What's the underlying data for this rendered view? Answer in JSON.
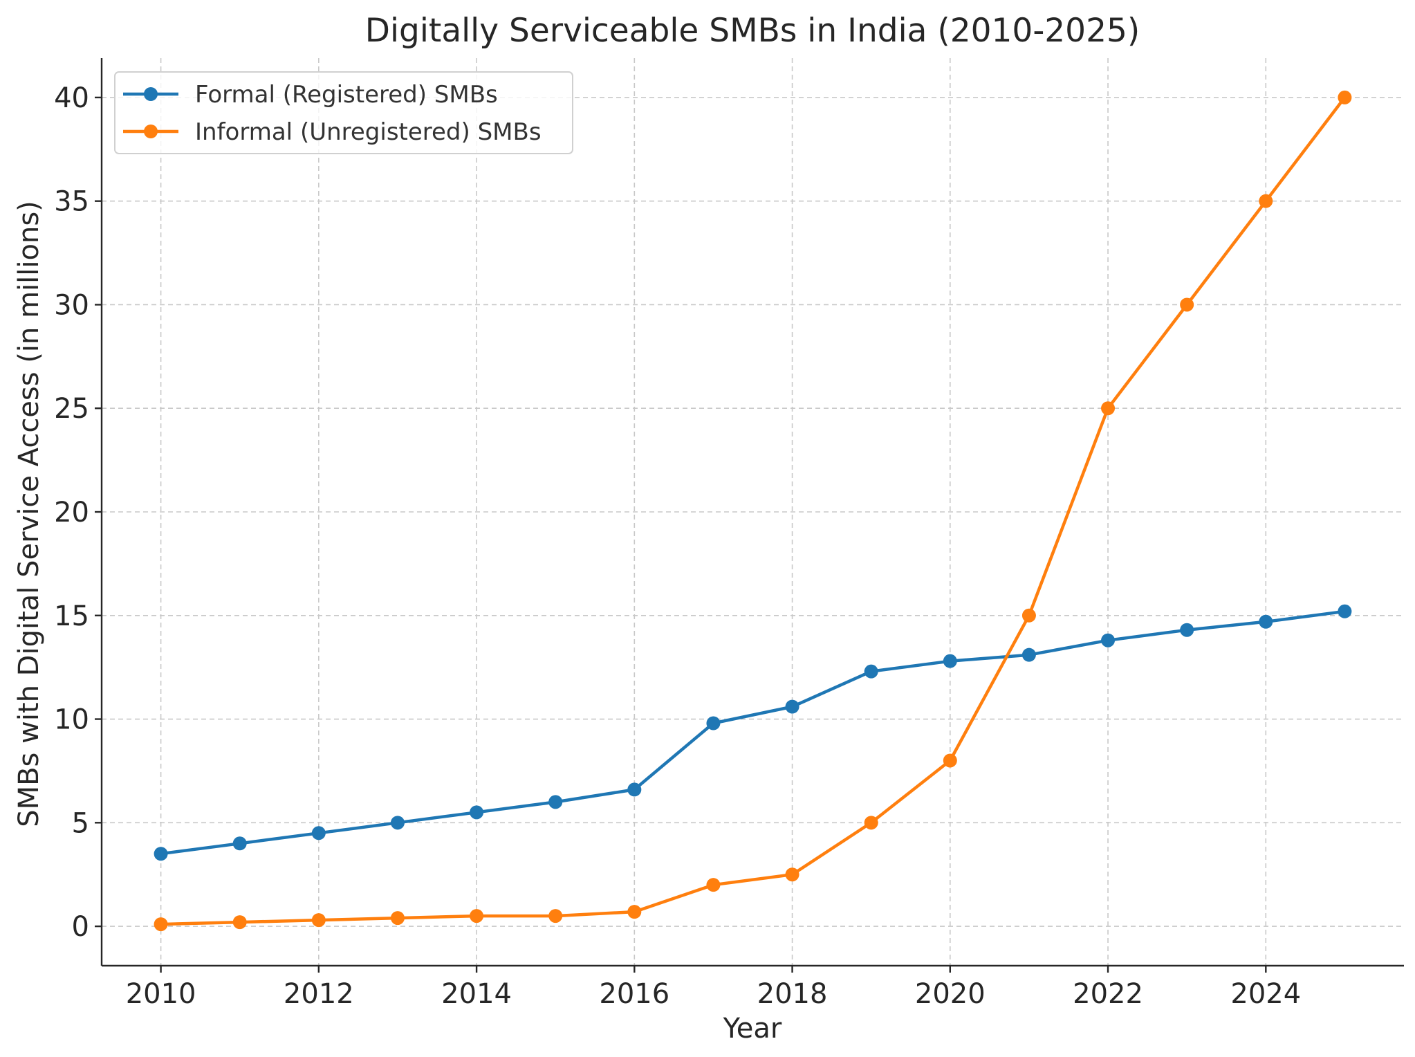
{
  "chart_data": {
    "type": "line",
    "title": "Digitally Serviceable SMBs in India (2010-2025)",
    "xlabel": "Year",
    "ylabel": "SMBs with Digital Service Access (in millions)",
    "x": [
      2010,
      2011,
      2012,
      2013,
      2014,
      2015,
      2016,
      2017,
      2018,
      2019,
      2020,
      2021,
      2022,
      2023,
      2024,
      2025
    ],
    "xlim": [
      2009.25,
      2025.75
    ],
    "ylim": [
      -1.9,
      41.9
    ],
    "xticks": [
      2010,
      2012,
      2014,
      2016,
      2018,
      2020,
      2022,
      2024
    ],
    "yticks": [
      0,
      5,
      10,
      15,
      20,
      25,
      30,
      35,
      40
    ],
    "grid": true,
    "legend_position": "top-left",
    "series": [
      {
        "name": "Formal (Registered) SMBs",
        "color": "#1f77b4",
        "marker": "circle",
        "values": [
          3.5,
          4.0,
          4.5,
          5.0,
          5.5,
          6.0,
          6.6,
          9.8,
          10.6,
          12.3,
          12.8,
          13.1,
          13.8,
          14.3,
          14.7,
          15.2
        ]
      },
      {
        "name": "Informal (Unregistered) SMBs",
        "color": "#ff7f0e",
        "marker": "circle",
        "values": [
          0.1,
          0.2,
          0.3,
          0.4,
          0.5,
          0.5,
          0.7,
          2.0,
          2.5,
          5.0,
          8.0,
          15.0,
          25.0,
          30.0,
          35.0,
          40.0
        ]
      }
    ]
  }
}
